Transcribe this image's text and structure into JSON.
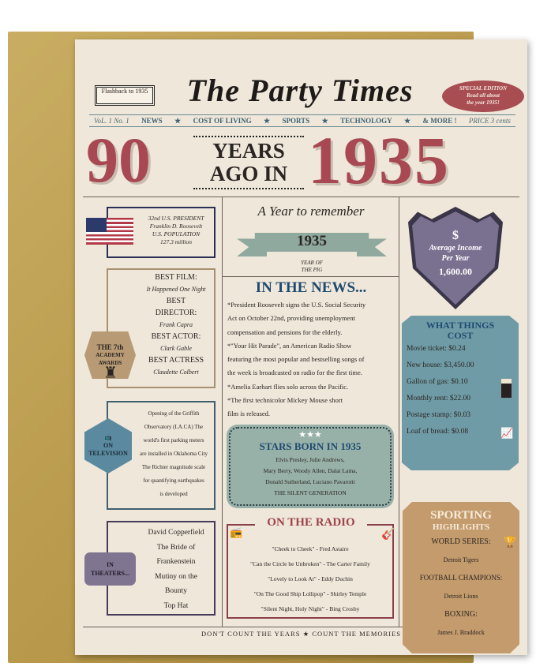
{
  "header": {
    "title": "The Party Times",
    "flashback": "Flashback to 1935",
    "special": [
      "SPECIAL EDITION",
      "Read all about",
      "the year 1935!"
    ]
  },
  "nav": {
    "volume": "VoL. 1 No. 1",
    "items": [
      "NEWS",
      "COST OF LIVING",
      "SPORTS",
      "TECHNOLOGY",
      "& MORE !"
    ],
    "price": "PRICE 3 cents"
  },
  "hero": {
    "number": "90",
    "middle": [
      "YEARS",
      "AGO IN"
    ],
    "year": "1935"
  },
  "president": {
    "lines": [
      "32nd U.S. PRESIDENT",
      "Franklin D. Roosevelt",
      "U.S. POPULATION",
      "127.3 million"
    ]
  },
  "academy": {
    "badge": [
      "THE 7th",
      "ACADEMY",
      "AWARDS"
    ],
    "awards": [
      {
        "label": "BEST FILM:",
        "value": "It Happened One Night"
      },
      {
        "label": "BEST DIRECTOR:",
        "value": "Frank Capra"
      },
      {
        "label": "BEST ACTOR:",
        "value": "Clark Gable"
      },
      {
        "label": "BEST ACTRESS",
        "value": "Claudette Colbert"
      }
    ]
  },
  "television": {
    "badge": [
      "ON",
      "TELEVISION"
    ],
    "lines": [
      "Opening of the Griffith",
      "Observatory (LA.CA) The",
      "world's first parking meters",
      "are installed in Oklahoma City",
      "The Richter magnitude scale",
      "for quantifying earthquakes",
      "is developed"
    ]
  },
  "theaters": {
    "badge": [
      "IN",
      "THEATERS..."
    ],
    "lines": [
      "David Copperfield",
      "The Bride of",
      "Frankenstein",
      "Mutiny on the",
      "Bounty",
      "Top Hat"
    ]
  },
  "year_box": {
    "script": "A Year to remember",
    "year": "1935",
    "zodiac": [
      "YEAR OF",
      "THE PIG"
    ]
  },
  "news": {
    "title": "IN THE NEWS...",
    "lines": [
      "*President Roosevelt signs the U.S. Social Security",
      "Act on October 22nd, providing unemployment",
      "compensation and pensions for the elderly.",
      "*\"Your Hit Parade\", an American Radio Show",
      "featuring the most popular and bestselling songs of",
      "the week is broadcasted on radio for the first time.",
      "*Amelia Earhart flies solo across the Pacific.",
      "*The first technicolor Mickey Mouse short",
      "film is released."
    ]
  },
  "stars": {
    "title": "STARS BORN IN 1935",
    "lines": [
      "Elvis Presley, Julie Andrews,",
      "Mary Berry, Woody Allen, Dalai Lama,",
      "Donald Sutherland, Luciano Pavarotti"
    ],
    "generation": "THE SILENT GENERATION"
  },
  "radio": {
    "title": "ON THE RADIO",
    "songs": [
      "\"Cheek to Cheek\" - Fred Astaire",
      "\"Can the Circle be Unbroken\" - The Carter Family",
      "\"Lovely to Look At\" - Eddy Duchin",
      "\"On The Good Ship Lollipop\" - Shirley Temple",
      "\"Silent Night, Holy Night\" - Bing Crosby"
    ]
  },
  "income": {
    "symbol": "$",
    "label": [
      "Average Income",
      "Per Year"
    ],
    "value": "1,600.00"
  },
  "cost": {
    "title": [
      "WHAT THINGS",
      "COST"
    ],
    "items": [
      "Movie ticket: $0.24",
      "New house: $3,450.00",
      "Gallon of gas: $0.10",
      "Monthly rent: $22.00",
      "Postage stamp: $0.03",
      "Loaf of bread: $0.08"
    ]
  },
  "sports": {
    "title": [
      "SPORTING",
      "HIGHLIGHTS"
    ],
    "items": [
      {
        "label": "WORLD SERIES:",
        "value": "Detroit Tigers"
      },
      {
        "label": "FOOTBALL CHAMPIONS:",
        "value": "Detroit Lions"
      },
      {
        "label": "BOXING:",
        "value": "James J. Braddock"
      }
    ]
  },
  "footer": {
    "left": "DON'T COUNT THE YEARS",
    "right": "COUNT THE MEMORIES"
  },
  "colors": {
    "red": "#a84852",
    "teal": "#6f9ba6",
    "slate": "#7a7090",
    "tan": "#c49b6c",
    "sage": "#97b1a8",
    "blue": "#1f4a70"
  }
}
